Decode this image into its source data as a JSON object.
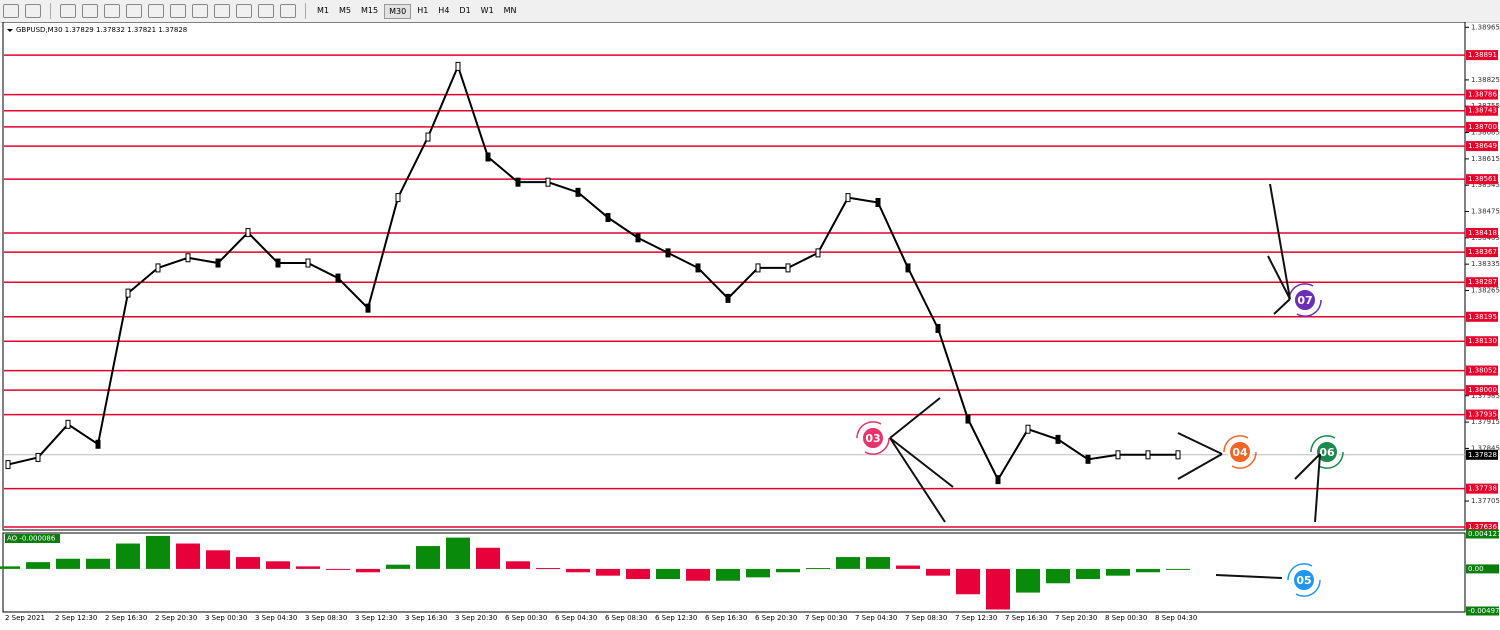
{
  "toolbar": {
    "timeframes": [
      "M1",
      "M5",
      "M15",
      "M30",
      "H1",
      "H4",
      "D1",
      "W1",
      "MN"
    ]
  },
  "chart": {
    "symbol_info": "GBPUSD,M30  1.37829 1.37832 1.37821 1.37828",
    "price_ylim": [
      1.37628,
      1.38979
    ],
    "price_ticks": [
      1.38965,
      1.38825,
      1.38755,
      1.38685,
      1.38615,
      1.38545,
      1.38475,
      1.38405,
      1.38335,
      1.38265,
      1.37985,
      1.37915,
      1.37845,
      1.37705
    ],
    "levels": [
      1.38891,
      1.38786,
      1.38743,
      {
        "value": 1.387,
        "label": "1.38700"
      },
      1.38649,
      1.38561,
      1.38418,
      1.38367,
      1.38287,
      1.38195,
      {
        "value": 1.3813,
        "label": "1.38130"
      },
      1.38052,
      {
        "value": 1.38,
        "label": "1.38000"
      },
      1.37935,
      1.37738,
      1.37636
    ],
    "current_price": 1.37828,
    "time_labels": [
      "2 Sep 2021",
      "2 Sep 12:30",
      "2 Sep 16:30",
      "2 Sep 20:30",
      "3 Sep 00:30",
      "3 Sep 04:30",
      "3 Sep 08:30",
      "3 Sep 12:30",
      "3 Sep 16:30",
      "3 Sep 20:30",
      "6 Sep 00:30",
      "6 Sep 04:30",
      "6 Sep 08:30",
      "6 Sep 12:30",
      "6 Sep 16:30",
      "6 Sep 20:30",
      "7 Sep 00:30",
      "7 Sep 04:30",
      "7 Sep 08:30",
      "7 Sep 12:30",
      "7 Sep 16:30",
      "7 Sep 20:30",
      "8 Sep 00:30",
      "8 Sep 04:30"
    ],
    "closes": [
      1.37802,
      1.37821,
      1.37909,
      1.37856,
      1.38258,
      1.38325,
      1.38352,
      1.38338,
      1.38419,
      1.38338,
      1.38338,
      1.38298,
      1.38218,
      1.38512,
      1.38673,
      1.38861,
      1.3862,
      1.38553,
      1.38553,
      1.38526,
      1.38459,
      1.38405,
      1.38365,
      1.38325,
      1.38244,
      1.38325,
      1.38325,
      1.38365,
      1.38512,
      1.38499,
      1.38325,
      1.38164,
      1.37923,
      1.37762,
      1.37896,
      1.37869,
      1.37816,
      1.37828,
      1.37828,
      1.37828
    ],
    "indicator": {
      "label": "AO -0.000086",
      "ylim": [
        -0.004978,
        0.004127
      ],
      "ticks": [
        0.004127,
        {
          "value": 0,
          "label": "0.00"
        },
        -0.004978
      ],
      "values": [
        0.0003,
        0.0008,
        0.0012,
        0.0012,
        0.003,
        0.0039,
        0.003,
        0.0022,
        0.0014,
        0.0009,
        0.0003,
        -0.0001,
        -0.0004,
        0.0005,
        0.0027,
        0.0037,
        0.0025,
        0.0009,
        0.0001,
        -0.0004,
        -0.0008,
        -0.0012,
        -0.0012,
        -0.0014,
        -0.0014,
        -0.001,
        -0.0004,
        0.0001,
        0.0014,
        0.0014,
        0.0004,
        -0.0008,
        -0.003,
        -0.0048,
        -0.0028,
        -0.0017,
        -0.0012,
        -0.0008,
        -0.0004,
        0
      ]
    }
  },
  "badges": [
    {
      "label": "03",
      "color": "#e8336b"
    },
    {
      "label": "04",
      "color": "#f26522"
    },
    {
      "label": "05",
      "color": "#2196f3"
    },
    {
      "label": "06",
      "color": "#1b8a4c"
    },
    {
      "label": "07",
      "color": "#6a2fb5"
    }
  ]
}
